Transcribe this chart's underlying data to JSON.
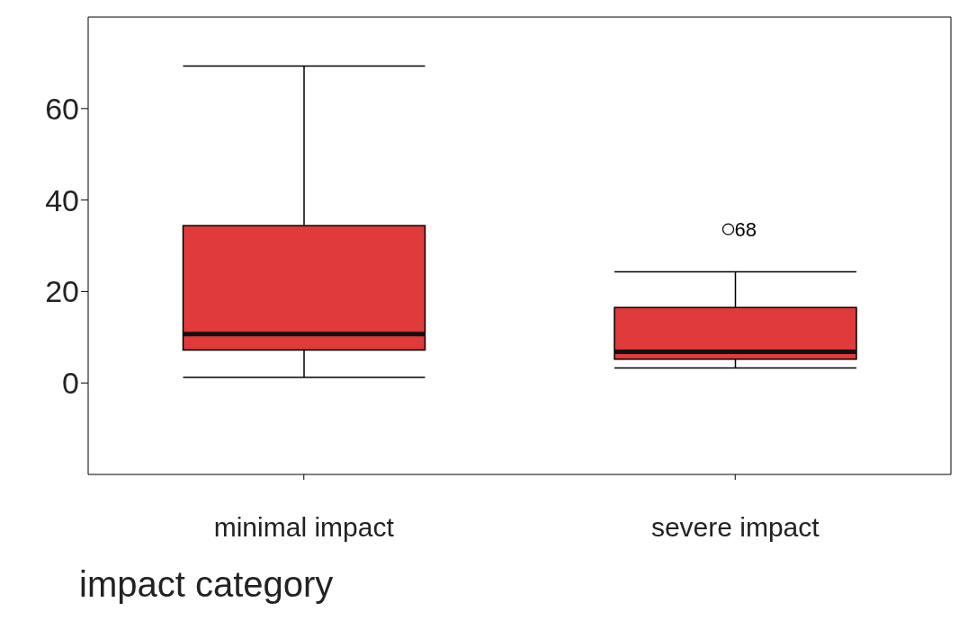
{
  "chart_data": {
    "type": "box",
    "xlabel": "impact category",
    "categories": [
      "minimal impact",
      "severe impact"
    ],
    "color": "#e03a3a",
    "boxes": [
      {
        "low": 1.2,
        "q1": 7.2,
        "median": 10.7,
        "q3": 34.4,
        "high": 69.3
      },
      {
        "low": 3.3,
        "q1": 5.2,
        "median": 6.8,
        "q3": 16.5,
        "high": 24.3,
        "outliers": [
          33.6
        ]
      }
    ],
    "ylim": [
      -20,
      80
    ],
    "yticks": [
      0,
      20,
      40,
      60
    ],
    "annotations": [
      "68"
    ]
  }
}
